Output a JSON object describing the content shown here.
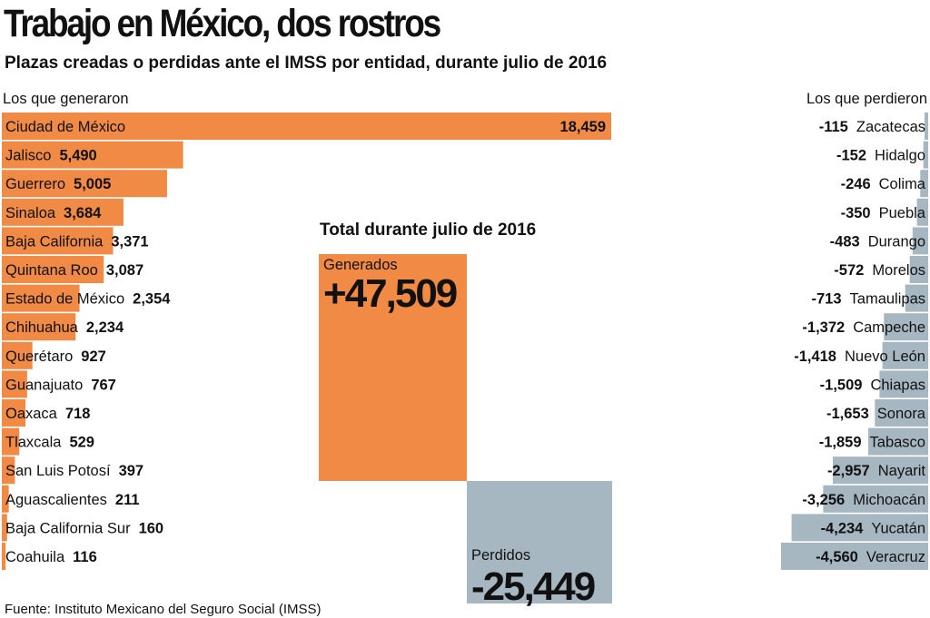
{
  "title": "Trabajo en México, dos rostros",
  "subtitle": "Plazas creadas o perdidas ante el IMSS por entidad, durante julio de 2016",
  "left_header": "Los que generaron",
  "right_header": "Los que perdieron",
  "total_title": "Total durante julio de 2016",
  "source": "Fuente: Instituto Mexicano del Seguro Social (IMSS)",
  "colors": {
    "gain": "#f08a44",
    "loss": "#a7b7c2"
  },
  "chart_data": [
    {
      "type": "bar",
      "title": "Los que generaron",
      "categories": [
        "Ciudad de México",
        "Jalisco",
        "Guerrero",
        "Sinaloa",
        "Baja California",
        "Quintana Roo",
        "Estado de México",
        "Chihuahua",
        "Querétaro",
        "Guanajuato",
        "Oaxaca",
        "Tlaxcala",
        "San Luis Potosí",
        "Aguascalientes",
        "Baja California Sur",
        "Coahuila"
      ],
      "values": [
        18459,
        5490,
        5005,
        3684,
        3371,
        3087,
        2354,
        2234,
        927,
        767,
        718,
        529,
        397,
        211,
        160,
        116
      ],
      "labels": [
        "18,459",
        "5,490",
        "5,005",
        "3,684",
        "3,371",
        "3,087",
        "2,354",
        "2,234",
        "927",
        "767",
        "718",
        "529",
        "397",
        "211",
        "160",
        "116"
      ]
    },
    {
      "type": "bar",
      "title": "Los que perdieron",
      "categories": [
        "Zacatecas",
        "Hidalgo",
        "Colima",
        "Puebla",
        "Durango",
        "Morelos",
        "Tamaulipas",
        "Campeche",
        "Nuevo León",
        "Chiapas",
        "Sonora",
        "Tabasco",
        "Nayarit",
        "Michoacán",
        "Yucatán",
        "Veracruz"
      ],
      "values": [
        -115,
        -152,
        -246,
        -350,
        -483,
        -572,
        -713,
        -1372,
        -1418,
        -1509,
        -1653,
        -1859,
        -2957,
        -3256,
        -4234,
        -4560
      ],
      "labels": [
        "-115",
        "-152",
        "-246",
        "-350",
        "-483",
        "-572",
        "-713",
        "-1,372",
        "-1,418",
        "-1,509",
        "-1,653",
        "-1,859",
        "-2,957",
        "-3,256",
        "-4,234",
        "-4,560"
      ]
    },
    {
      "type": "bar",
      "title": "Total durante julio de 2016",
      "categories": [
        "Generados",
        "Perdidos"
      ],
      "values": [
        47509,
        -25449
      ],
      "labels": [
        "+47,509",
        "-25,449"
      ]
    }
  ]
}
